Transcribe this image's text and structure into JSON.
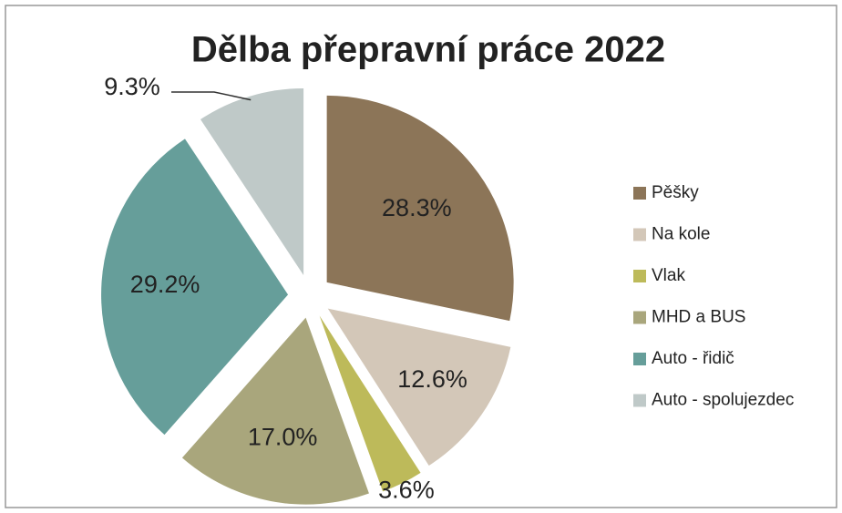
{
  "chart_data": {
    "type": "pie",
    "title": "Dělba přepravní práce 2022",
    "categories": [
      "Pěšky",
      "Na kole",
      "Vlak",
      "MHD a BUS",
      "Auto - řidič",
      "Auto - spolujezdec"
    ],
    "values": [
      28.3,
      12.6,
      3.6,
      17.0,
      29.2,
      9.3
    ],
    "value_labels": [
      "28.3%",
      "12.6%",
      "3.6%",
      "17.0%",
      "29.2%",
      "9.3%"
    ],
    "colors": [
      "#8c7558",
      "#d3c7b8",
      "#bdba5a",
      "#a9a67c",
      "#669e9a",
      "#bfc9c8"
    ],
    "legend": "right"
  }
}
